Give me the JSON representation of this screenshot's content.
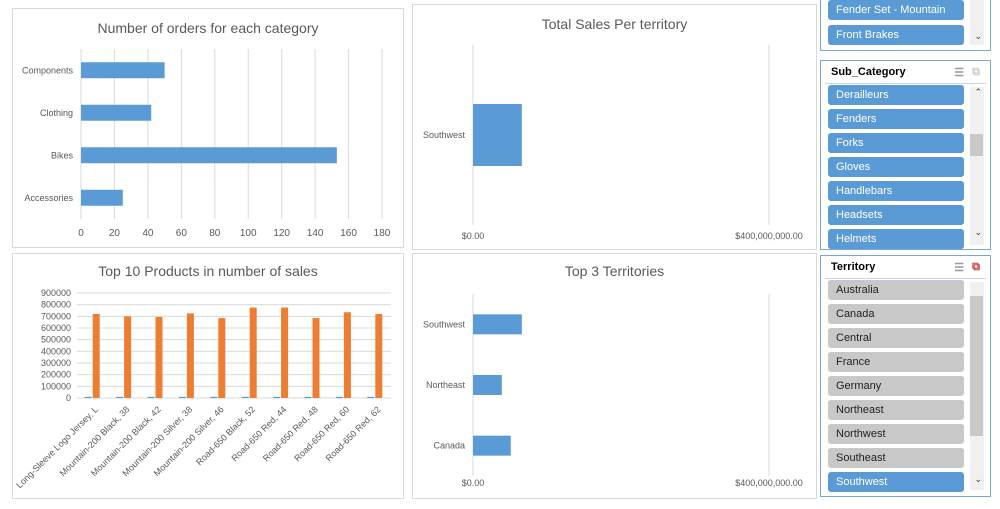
{
  "chart_data": [
    {
      "type": "bar",
      "orientation": "horizontal",
      "title": "Number of orders for each category",
      "categories": [
        "Components",
        "Clothing",
        "Bikes",
        "Accessories"
      ],
      "values": [
        50,
        42,
        153,
        25
      ],
      "xlim": [
        0,
        180
      ],
      "xticks": [
        "0",
        "20",
        "40",
        "60",
        "80",
        "100",
        "120",
        "140",
        "160",
        "180"
      ],
      "grid": true,
      "color": "#5b9bd5"
    },
    {
      "type": "bar",
      "orientation": "horizontal",
      "title": "Total Sales Per territory",
      "categories": [
        "Southwest"
      ],
      "values": [
        66000000
      ],
      "xlim": [
        0,
        400000000
      ],
      "xticks": [
        "$0.00",
        "$400,000,000.00"
      ],
      "grid": true,
      "color": "#5b9bd5"
    },
    {
      "type": "bar",
      "title": "Top 10 Products in number of sales",
      "categories": [
        "Long-Sleeve Logo Jersey, L",
        "Mountain-200 Black, 38",
        "Mountain-200 Black, 42",
        "Mountain-200 Silver, 38",
        "Mountain-200 Silver, 46",
        "Road-650 Black, 52",
        "Road-650 Red, 44",
        "Road-650 Red, 48",
        "Road-650 Red, 60",
        "Road-650 Red, 62"
      ],
      "series": [
        {
          "values": [
            10000,
            10000,
            10000,
            10000,
            10000,
            10000,
            10000,
            10000,
            10000,
            10000
          ],
          "color": "#5b9bd5"
        },
        {
          "values": [
            720000,
            700000,
            695000,
            725000,
            685000,
            775000,
            775000,
            685000,
            735000,
            720000
          ],
          "color": "#ed7d31"
        }
      ],
      "ylim": [
        0,
        900000
      ],
      "yticks": [
        "0",
        "100000",
        "200000",
        "300000",
        "400000",
        "500000",
        "600000",
        "700000",
        "800000",
        "900000"
      ],
      "grid": true
    },
    {
      "type": "bar",
      "orientation": "horizontal",
      "title": "Top 3 Territories",
      "categories": [
        "Southwest",
        "Northeast",
        "Canada"
      ],
      "values": [
        66000000,
        39000000,
        51000000
      ],
      "xlim": [
        0,
        400000000
      ],
      "xticks": [
        "$0.00",
        "$400,000,000.00"
      ],
      "grid": true,
      "color": "#5b9bd5"
    }
  ],
  "slicers": {
    "product": {
      "items": [
        "Fender Set - Mountain",
        "Front Brakes"
      ]
    },
    "sub_category": {
      "title": "Sub_Category",
      "items": [
        "Derailleurs",
        "Fenders",
        "Forks",
        "Gloves",
        "Handlebars",
        "Headsets",
        "Helmets"
      ]
    },
    "territory": {
      "title": "Territory",
      "items": [
        "Australia",
        "Canada",
        "Central",
        "France",
        "Germany",
        "Northeast",
        "Northwest",
        "Southeast",
        "Southwest"
      ],
      "selected": [
        "Southwest"
      ]
    }
  }
}
